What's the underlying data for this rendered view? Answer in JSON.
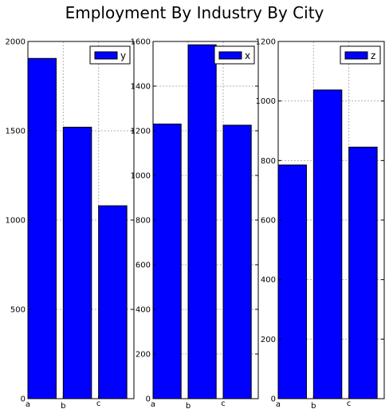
{
  "title": "Employment By Industry By City",
  "colors": {
    "bar_fill": "#0000ff",
    "bar_stroke": "#000000",
    "grid": "#b0b0b0",
    "axes": "#000000"
  },
  "chart_data": [
    {
      "type": "bar",
      "categories": [
        "a",
        "b",
        "c"
      ],
      "series": [
        {
          "name": "y",
          "values": [
            1905,
            1520,
            1080
          ]
        }
      ],
      "ylim": [
        0,
        2000
      ],
      "yticks": [
        0,
        500,
        1000,
        1500,
        2000
      ],
      "grid": true,
      "legend": "top-right"
    },
    {
      "type": "bar",
      "categories": [
        "a",
        "b",
        "c"
      ],
      "series": [
        {
          "name": "x",
          "values": [
            1230,
            1585,
            1225
          ]
        }
      ],
      "ylim": [
        0,
        1600
      ],
      "yticks": [
        0,
        200,
        400,
        600,
        800,
        1000,
        1200,
        1400,
        1600
      ],
      "grid": true,
      "legend": "top-right"
    },
    {
      "type": "bar",
      "categories": [
        "a",
        "b",
        "c"
      ],
      "series": [
        {
          "name": "z",
          "values": [
            785,
            1037,
            845
          ]
        }
      ],
      "ylim": [
        0,
        1200
      ],
      "yticks": [
        0,
        200,
        400,
        600,
        800,
        1000,
        1200
      ],
      "grid": true,
      "legend": "top-right"
    }
  ]
}
